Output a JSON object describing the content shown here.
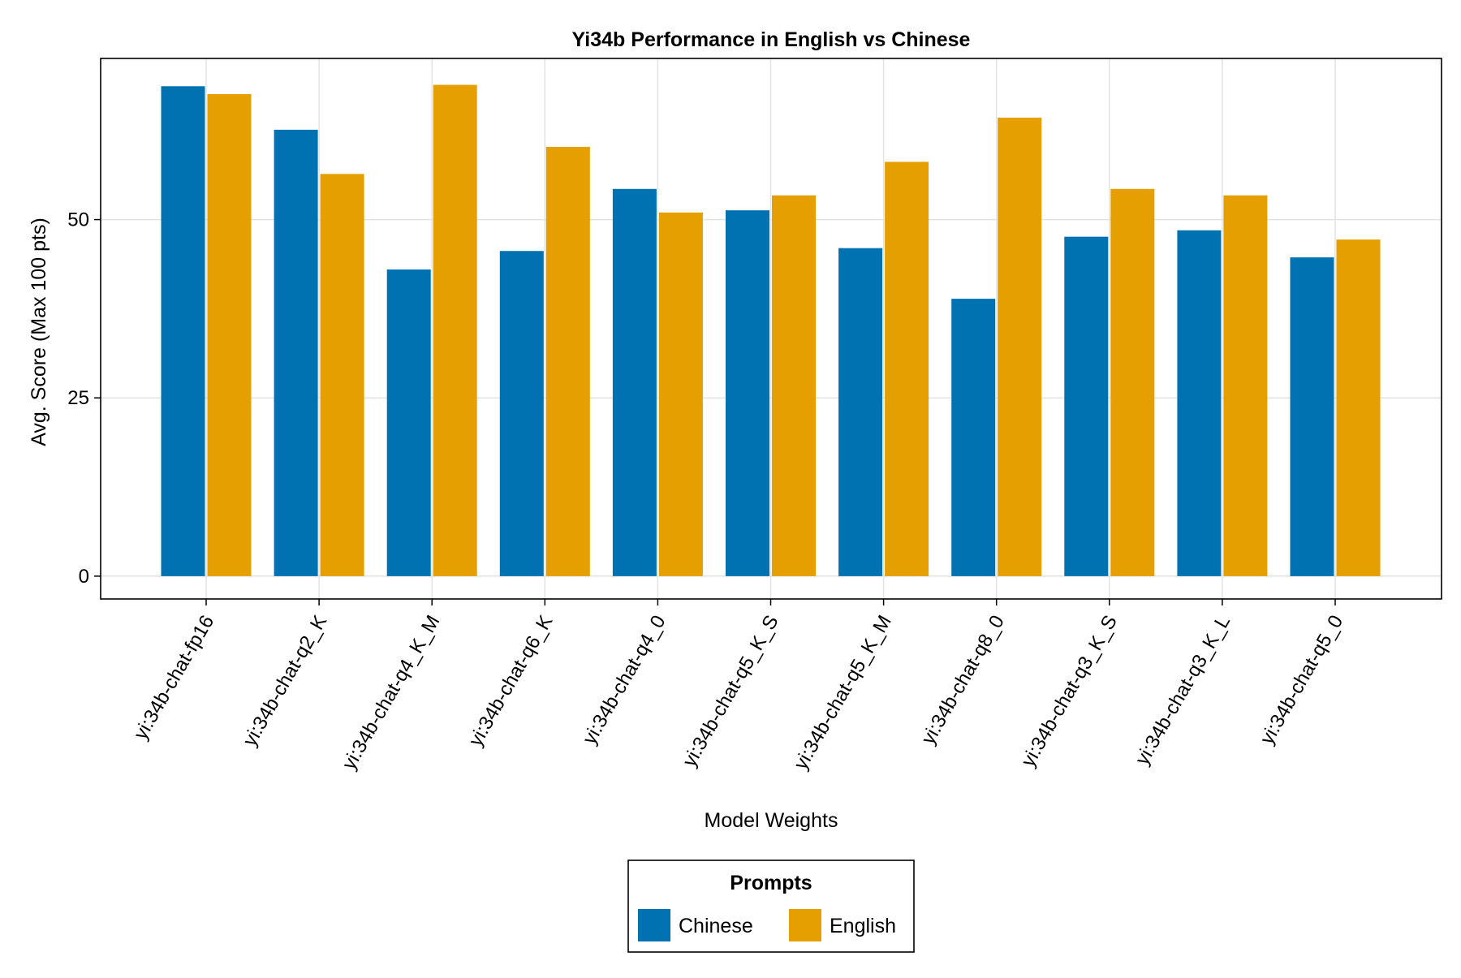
{
  "chart_data": {
    "type": "bar",
    "title": "Yi34b Performance in English vs Chinese",
    "xlabel": "Model Weights",
    "ylabel": "Avg. Score (Max 100 pts)",
    "ylim": [
      -3.2,
      72.6
    ],
    "yticks": [
      "0",
      "25",
      "50"
    ],
    "grid": true,
    "categories": [
      "yi:34b-chat-fp16",
      "yi:34b-chat-q2_K",
      "yi:34b-chat-q4_K_M",
      "yi:34b-chat-q6_K",
      "yi:34b-chat-q4_0",
      "yi:34b-chat-q5_K_S",
      "yi:34b-chat-q5_K_M",
      "yi:34b-chat-q8_0",
      "yi:34b-chat-q3_K_S",
      "yi:34b-chat-q3_K_L",
      "yi:34b-chat-q5_0"
    ],
    "series": [
      {
        "name": "Chinese",
        "color": "#0072b2",
        "values": [
          68.7,
          62.6,
          43.0,
          45.6,
          54.3,
          51.3,
          46.0,
          38.9,
          47.6,
          48.5,
          44.7
        ]
      },
      {
        "name": "English",
        "color": "#e69f00",
        "values": [
          67.6,
          56.4,
          68.9,
          60.2,
          51.0,
          53.4,
          58.1,
          64.3,
          54.3,
          53.4,
          47.2
        ]
      }
    ],
    "legend": {
      "title": "Prompts",
      "placement": "bottom-center"
    }
  }
}
